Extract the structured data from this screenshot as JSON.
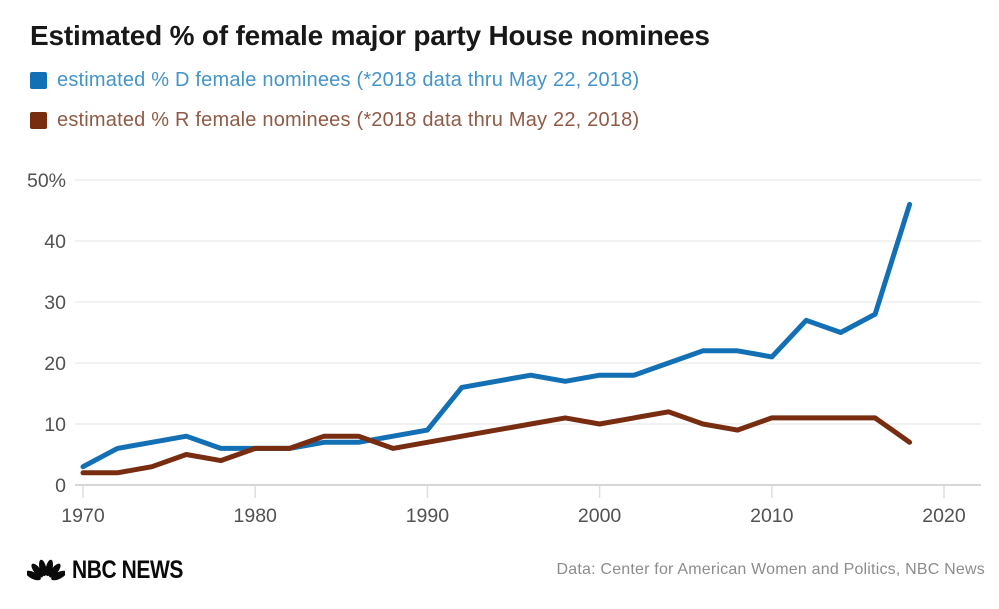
{
  "title": "Estimated % of female major party House nominees",
  "legend": [
    {
      "label": "estimated % D female nominees (*2018 data thru May 22, 2018)",
      "swatch_color": "#1470b4",
      "text_color": "#4494c9"
    },
    {
      "label": "estimated % R female nominees (*2018 data thru May 22, 2018)",
      "swatch_color": "#782d11",
      "text_color": "#8f5b46"
    }
  ],
  "chart_data": {
    "type": "line",
    "x": [
      1970,
      1972,
      1974,
      1976,
      1978,
      1980,
      1982,
      1984,
      1986,
      1988,
      1990,
      1992,
      1994,
      1996,
      1998,
      2000,
      2002,
      2004,
      2006,
      2008,
      2010,
      2012,
      2014,
      2016,
      2018
    ],
    "series": [
      {
        "name": "estimated % D female nominees (*2018 data thru May 22, 2018)",
        "color": "#1470b4",
        "values": [
          3,
          6,
          7,
          8,
          6,
          6,
          6,
          7,
          7,
          8,
          9,
          16,
          17,
          18,
          17,
          18,
          18,
          20,
          22,
          22,
          21,
          27,
          25,
          28,
          46
        ]
      },
      {
        "name": "estimated % R female nominees (*2018 data thru May 22, 2018)",
        "color": "#782d11",
        "values": [
          2,
          2,
          3,
          5,
          4,
          6,
          6,
          8,
          8,
          6,
          7,
          8,
          9,
          10,
          11,
          10,
          11,
          12,
          10,
          9,
          11,
          11,
          11,
          11,
          7
        ]
      }
    ],
    "title": "Estimated % of female major party House nominees",
    "xlabel": "",
    "ylabel": "",
    "xlim": [
      1970,
      2020
    ],
    "ylim": [
      0,
      50
    ],
    "x_ticks": [
      1970,
      1980,
      1990,
      2000,
      2010,
      2020
    ],
    "x_tick_labels": [
      "1970",
      "1980",
      "1990",
      "2000",
      "2010",
      "2020"
    ],
    "y_ticks": [
      0,
      10,
      20,
      30,
      40,
      50
    ],
    "y_tick_labels": [
      "0",
      "10",
      "20",
      "30",
      "40",
      "50%"
    ],
    "grid": true,
    "legend_position": "top-left",
    "grid_color": "#e9e9e9",
    "axis_line_color": "#c9c9c9",
    "tick_color": "#dedede",
    "tick_label_color": "#515254"
  },
  "footer": {
    "logo_text": "NBC NEWS",
    "source": "Data: Center for American Women and Politics, NBC News"
  }
}
